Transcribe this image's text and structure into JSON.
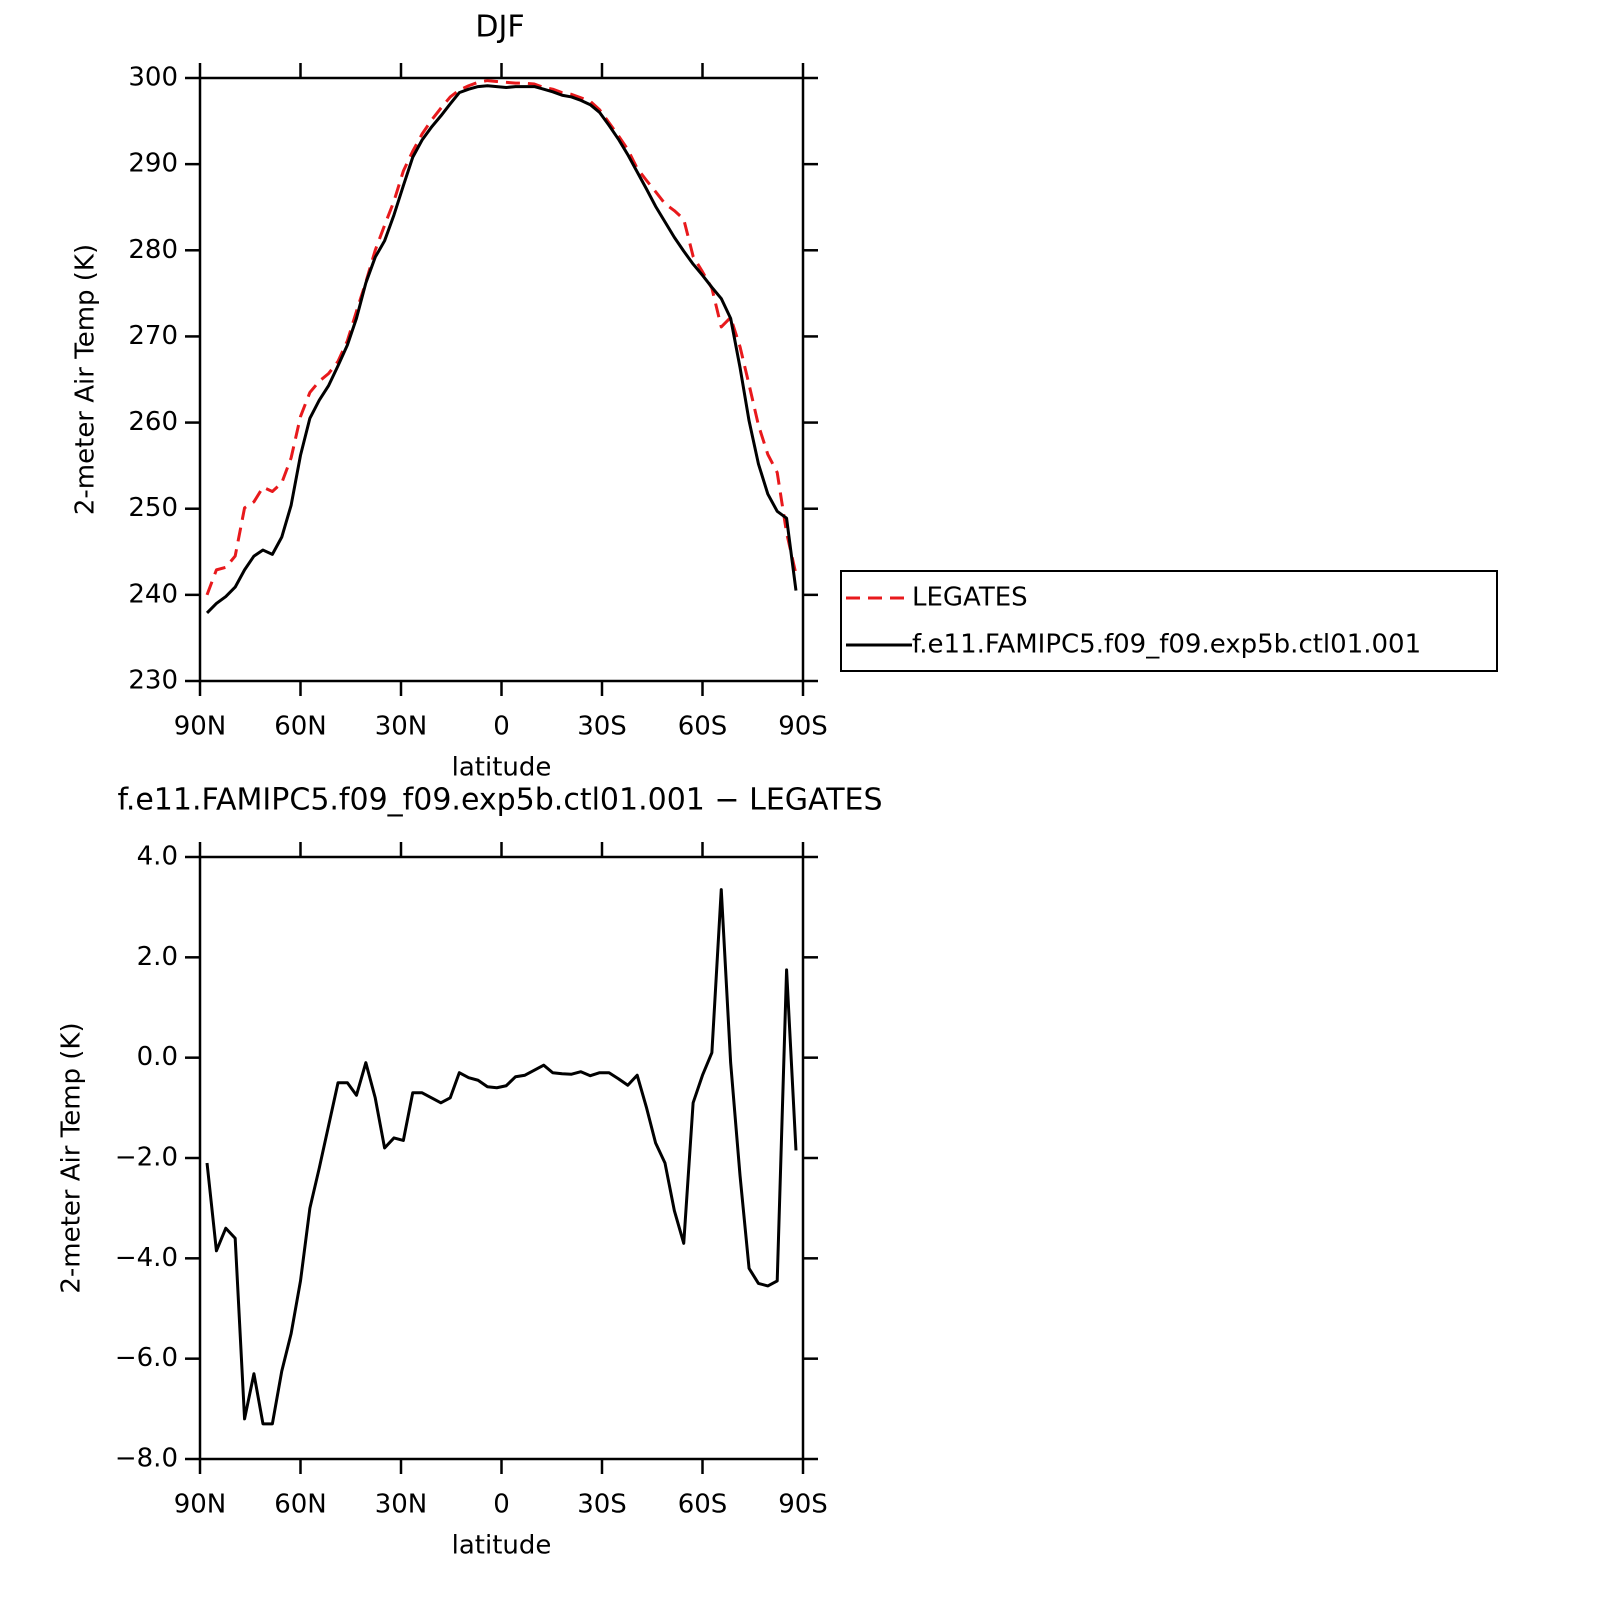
{
  "chart_data": [
    {
      "type": "line",
      "title": "DJF",
      "xlabel": "latitude",
      "ylabel": "2-meter Air Temp (K)",
      "x": [
        87.9,
        85.1,
        82.3,
        79.5,
        76.7,
        73.9,
        71.2,
        68.4,
        65.6,
        62.8,
        60.0,
        57.2,
        54.4,
        51.6,
        48.8,
        46.0,
        43.3,
        40.5,
        37.7,
        34.9,
        32.1,
        29.3,
        26.5,
        23.7,
        20.9,
        18.1,
        15.3,
        12.6,
        9.8,
        7.0,
        4.2,
        1.4,
        -1.4,
        -4.2,
        -7.0,
        -9.8,
        -12.6,
        -15.3,
        -18.1,
        -20.9,
        -23.7,
        -26.5,
        -29.3,
        -32.1,
        -34.9,
        -37.7,
        -40.5,
        -43.3,
        -46.0,
        -48.8,
        -51.6,
        -54.4,
        -57.2,
        -60.0,
        -62.8,
        -65.6,
        -68.4,
        -71.2,
        -73.9,
        -76.7,
        -79.5,
        -82.3,
        -85.1,
        -87.9
      ],
      "series": [
        {
          "name": "LEGATES",
          "color": "#e8191c",
          "line_style": "dashed",
          "values": [
            240.0,
            242.9,
            243.2,
            244.5,
            250.1,
            250.8,
            252.5,
            252.0,
            253.0,
            255.9,
            260.7,
            263.5,
            264.8,
            265.7,
            267.1,
            269.5,
            272.9,
            276.3,
            280.0,
            282.9,
            285.7,
            289.2,
            291.5,
            293.5,
            295.1,
            296.5,
            297.8,
            298.6,
            299.1,
            299.5,
            299.7,
            299.6,
            299.5,
            299.4,
            299.4,
            299.3,
            298.9,
            298.7,
            298.3,
            298.1,
            297.7,
            297.3,
            296.3,
            294.8,
            293.3,
            291.7,
            289.5,
            288.1,
            286.8,
            285.4,
            284.6,
            283.6,
            279.3,
            277.5,
            275.6,
            271.1,
            272.2,
            268.8,
            264.4,
            259.7,
            256.3,
            254.2,
            247.2,
            242.4
          ]
        },
        {
          "name": "f.e11.FAMIPC5.f09_f09.exp5b.ctl01.001",
          "color": "#000000",
          "line_style": "solid",
          "values": [
            237.9,
            239.0,
            239.8,
            240.9,
            242.9,
            244.5,
            245.2,
            244.7,
            246.7,
            250.4,
            256.2,
            260.5,
            262.6,
            264.3,
            266.6,
            269.0,
            272.1,
            276.2,
            279.2,
            281.1,
            284.1,
            287.5,
            290.8,
            292.8,
            294.3,
            295.6,
            297.0,
            298.3,
            298.7,
            299.0,
            299.1,
            299.0,
            298.9,
            299.0,
            299.0,
            299.0,
            298.7,
            298.4,
            298.0,
            297.8,
            297.4,
            296.9,
            296.0,
            294.5,
            292.9,
            291.1,
            289.1,
            287.1,
            285.1,
            283.3,
            281.5,
            279.9,
            278.4,
            277.1,
            275.7,
            274.4,
            272.1,
            266.4,
            260.2,
            255.2,
            251.7,
            249.7,
            248.9,
            240.5
          ]
        }
      ],
      "xlim": [
        90,
        -90
      ],
      "xticks": [
        {
          "value": 90,
          "label": "90N"
        },
        {
          "value": 60,
          "label": "60N"
        },
        {
          "value": 30,
          "label": "30N"
        },
        0,
        {
          "value": -30,
          "label": "30S"
        },
        {
          "value": -60,
          "label": "60S"
        },
        {
          "value": -90,
          "label": "90S"
        }
      ],
      "ylim": [
        230,
        300
      ],
      "yticks": [
        230,
        240,
        250,
        260,
        270,
        280,
        290,
        300
      ],
      "legend": "right"
    },
    {
      "type": "line",
      "title": "f.e11.FAMIPC5.f09_f09.exp5b.ctl01.001 − LEGATES",
      "xlabel": "latitude",
      "ylabel": "2-meter Air Temp (K)",
      "x": [
        87.9,
        85.1,
        82.3,
        79.5,
        76.7,
        73.9,
        71.2,
        68.4,
        65.6,
        62.8,
        60.0,
        57.2,
        54.4,
        51.6,
        48.8,
        46.0,
        43.3,
        40.5,
        37.7,
        34.9,
        32.1,
        29.3,
        26.5,
        23.7,
        20.9,
        18.1,
        15.3,
        12.6,
        9.8,
        7.0,
        4.2,
        1.4,
        -1.4,
        -4.2,
        -7.0,
        -9.8,
        -12.6,
        -15.3,
        -18.1,
        -20.9,
        -23.7,
        -26.5,
        -29.3,
        -32.1,
        -34.9,
        -37.7,
        -40.5,
        -43.3,
        -46.0,
        -48.8,
        -51.6,
        -54.4,
        -57.2,
        -60.0,
        -62.8,
        -65.6,
        -68.4,
        -71.2,
        -73.9,
        -76.7,
        -79.5,
        -82.3,
        -85.1,
        -87.9
      ],
      "values": [
        -2.1,
        -3.85,
        -3.4,
        -3.6,
        -7.2,
        -6.3,
        -7.3,
        -7.3,
        -6.25,
        -5.5,
        -4.45,
        -3.0,
        -2.2,
        -1.35,
        -0.5,
        -0.5,
        -0.75,
        -0.1,
        -0.8,
        -1.8,
        -1.6,
        -1.65,
        -0.7,
        -0.7,
        -0.8,
        -0.9,
        -0.8,
        -0.3,
        -0.4,
        -0.45,
        -0.58,
        -0.6,
        -0.56,
        -0.38,
        -0.35,
        -0.25,
        -0.15,
        -0.3,
        -0.32,
        -0.33,
        -0.28,
        -0.36,
        -0.3,
        -0.3,
        -0.42,
        -0.55,
        -0.35,
        -1.0,
        -1.7,
        -2.1,
        -3.05,
        -3.7,
        -0.9,
        -0.35,
        0.1,
        3.35,
        -0.1,
        -2.35,
        -4.2,
        -4.5,
        -4.55,
        -4.45,
        1.75,
        -1.85
      ],
      "color": "#000000",
      "line_style": "solid",
      "xlim": [
        90,
        -90
      ],
      "xticks": [
        {
          "value": 90,
          "label": "90N"
        },
        {
          "value": 60,
          "label": "60N"
        },
        {
          "value": 30,
          "label": "30N"
        },
        0,
        {
          "value": -30,
          "label": "30S"
        },
        {
          "value": -60,
          "label": "60S"
        },
        {
          "value": -90,
          "label": "90S"
        }
      ],
      "ylim": [
        -8,
        4
      ],
      "yticks": [
        {
          "value": -8,
          "label": "−8.0"
        },
        {
          "value": -6,
          "label": "−6.0"
        },
        {
          "value": -4,
          "label": "−4.0"
        },
        {
          "value": -2,
          "label": "−2.0"
        },
        {
          "value": 0,
          "label": "0.0"
        },
        {
          "value": 2,
          "label": "2.0"
        },
        {
          "value": 4,
          "label": "4.0"
        }
      ]
    }
  ]
}
